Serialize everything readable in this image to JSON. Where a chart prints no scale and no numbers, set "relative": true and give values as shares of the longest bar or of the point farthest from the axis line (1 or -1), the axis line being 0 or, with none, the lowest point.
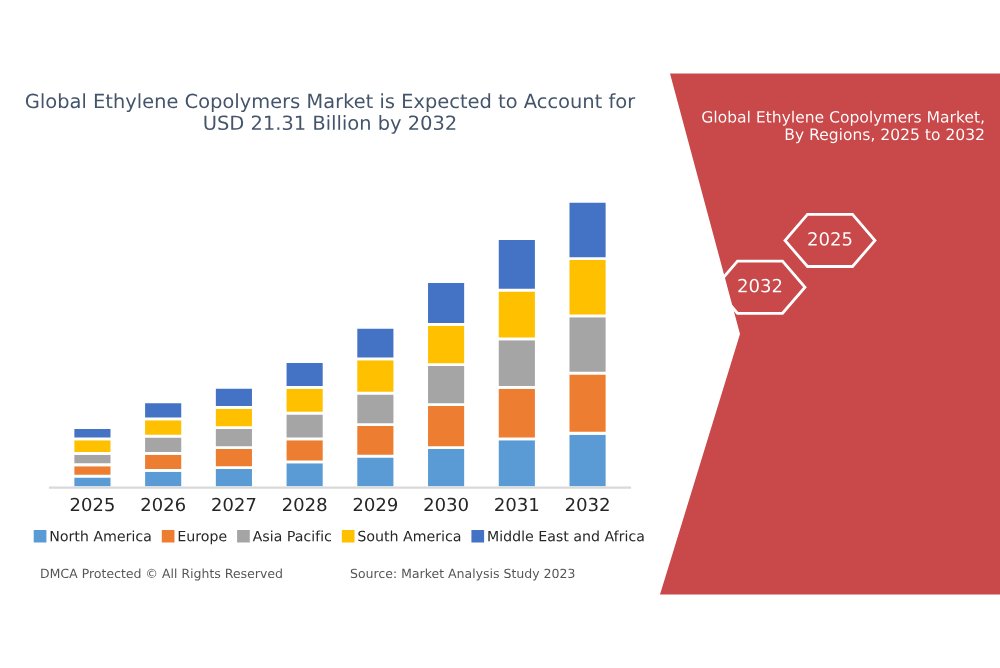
{
  "chart_data": {
    "type": "bar",
    "stacked": true,
    "relative": true,
    "title": "Global Ethylene Copolymers Market is Expected to Account for\nUSD 21.31 Billion by 2032",
    "subtitle": "Global Ethylene Copolymers Market,\nBy Regions, 2025 to 2032",
    "categories": [
      "2025",
      "2026",
      "2027",
      "2028",
      "2029",
      "2030",
      "2031",
      "2032"
    ],
    "series": [
      {
        "name": "North America",
        "color": "#5b9bd5",
        "values": [
          0.04,
          0.06,
          0.07,
          0.09,
          0.11,
          0.14,
          0.17,
          0.19
        ]
      },
      {
        "name": "Europe",
        "color": "#ed7d31",
        "values": [
          0.04,
          0.06,
          0.07,
          0.08,
          0.11,
          0.15,
          0.18,
          0.21
        ]
      },
      {
        "name": "Asia Pacific",
        "color": "#a5a5a5",
        "values": [
          0.04,
          0.06,
          0.07,
          0.09,
          0.11,
          0.14,
          0.17,
          0.2
        ]
      },
      {
        "name": "South America",
        "color": "#ffc000",
        "values": [
          0.05,
          0.06,
          0.07,
          0.09,
          0.12,
          0.14,
          0.17,
          0.2
        ]
      },
      {
        "name": "Middle East and Africa",
        "color": "#4472c4",
        "values": [
          0.04,
          0.06,
          0.07,
          0.09,
          0.11,
          0.15,
          0.18,
          0.2
        ]
      }
    ],
    "annotations": [
      "2025",
      "2032",
      "DMCA Protected © All Rights Reserved",
      "Source: Market Analysis Study 2023"
    ],
    "legend": "bottom",
    "grid": false
  }
}
